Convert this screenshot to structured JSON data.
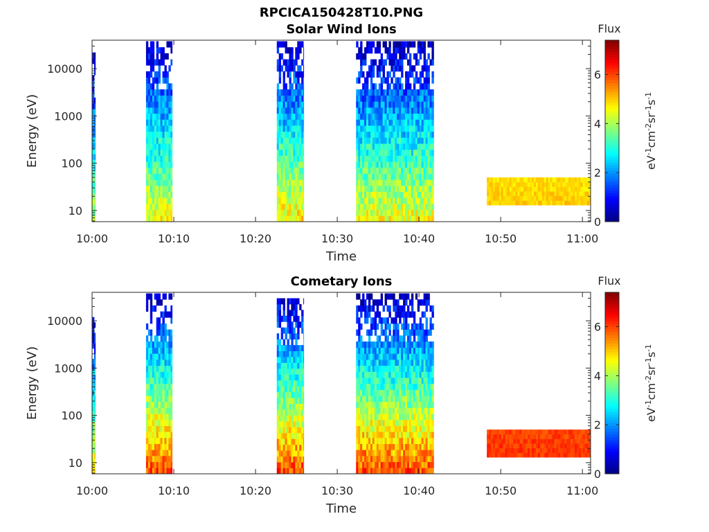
{
  "figure_title": "RPCICA150428T10.PNG",
  "chart_data": [
    {
      "type": "heatmap",
      "title": "Solar Wind Ions",
      "xlabel": "Time",
      "ylabel": "Energy (eV)",
      "x_ticks": [
        "10:00",
        "10:10",
        "10:20",
        "10:30",
        "10:40",
        "10:50",
        "11:00"
      ],
      "xlim_minutes": [
        0,
        61
      ],
      "y_scale": "log",
      "y_ticks": [
        10,
        100,
        1000,
        10000
      ],
      "ylim": [
        5.8,
        40000
      ],
      "colorbar": {
        "label": "Flux",
        "unit_label": "eV-1cm-2sr-1s-1",
        "ticks": [
          0,
          2,
          4,
          6
        ],
        "range": [
          0,
          7.4
        ],
        "colormap": "jet"
      },
      "blocks": [
        {
          "t_start": 0.0,
          "t_end": 0.4,
          "e_max": 22000,
          "flux_low": 4.0,
          "flux_high": 0.4
        },
        {
          "t_start": 6.6,
          "t_end": 9.8,
          "e_max": 38000,
          "flux_low": 4.6,
          "flux_high": 0.5
        },
        {
          "t_start": 22.6,
          "t_end": 25.9,
          "e_max": 38000,
          "flux_low": 4.8,
          "flux_high": 0.5
        },
        {
          "t_start": 32.3,
          "t_end": 41.8,
          "e_max": 38000,
          "flux_low": 4.6,
          "flux_high": 0.4
        },
        {
          "t_start": 48.3,
          "t_end": 61.0,
          "e_min": 13,
          "e_max": 50,
          "flux_low": 5.0,
          "flux_high": 4.8
        }
      ]
    },
    {
      "type": "heatmap",
      "title": "Cometary Ions",
      "xlabel": "Time",
      "ylabel": "Energy (eV)",
      "x_ticks": [
        "10:00",
        "10:10",
        "10:20",
        "10:30",
        "10:40",
        "10:50",
        "11:00"
      ],
      "xlim_minutes": [
        0,
        61
      ],
      "y_scale": "log",
      "y_ticks": [
        10,
        100,
        1000,
        10000
      ],
      "ylim": [
        5.8,
        40000
      ],
      "colorbar": {
        "label": "Flux",
        "unit_label": "eV-1cm-2sr-1s-1",
        "ticks": [
          0,
          2,
          4,
          6
        ],
        "range": [
          0,
          7.4
        ],
        "colormap": "jet"
      },
      "blocks": [
        {
          "t_start": 0.0,
          "t_end": 0.4,
          "e_max": 12000,
          "flux_low": 4.8,
          "flux_high": 0.6
        },
        {
          "t_start": 6.6,
          "t_end": 9.8,
          "e_max": 38000,
          "flux_low": 6.0,
          "flux_high": 0.5
        },
        {
          "t_start": 22.6,
          "t_end": 25.9,
          "e_max": 30000,
          "flux_low": 6.0,
          "flux_high": 0.5
        },
        {
          "t_start": 32.3,
          "t_end": 41.8,
          "e_max": 38000,
          "flux_low": 6.0,
          "flux_high": 0.4
        },
        {
          "t_start": 48.3,
          "t_end": 61.0,
          "e_min": 13,
          "e_max": 50,
          "flux_low": 6.1,
          "flux_high": 6.0
        }
      ]
    }
  ]
}
